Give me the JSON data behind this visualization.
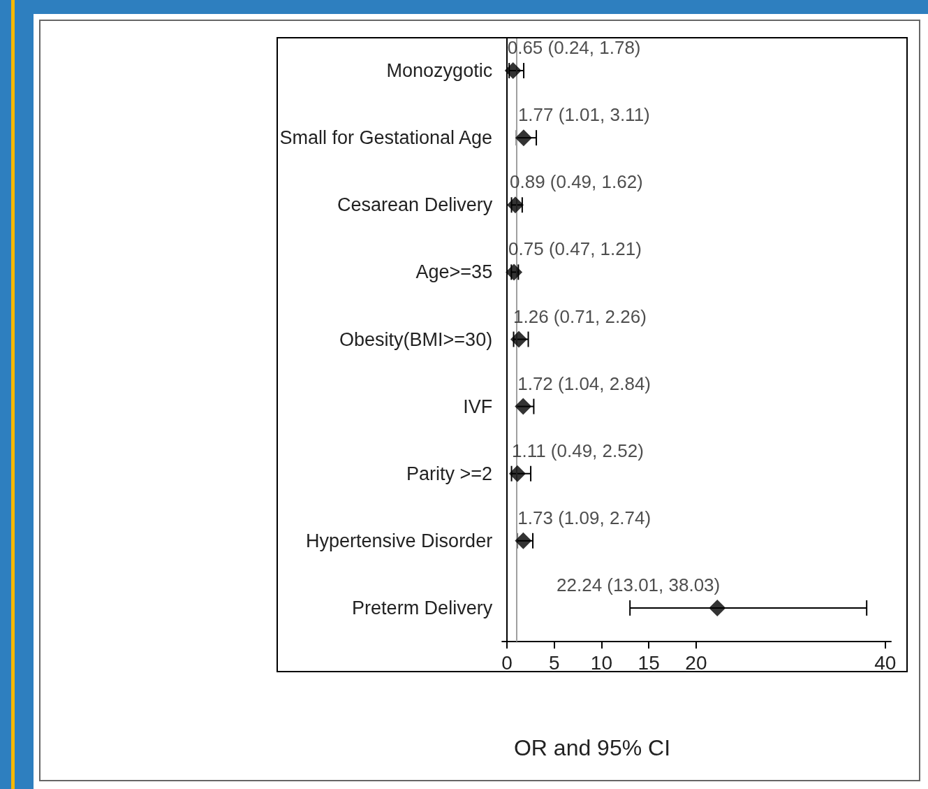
{
  "chart_data": {
    "type": "scatter",
    "orientation": "horizontal",
    "xlabel": "OR and 95% CI",
    "categories": [
      "Monozygotic",
      "Small for Gestational Age",
      "Cesarean Delivery",
      "Age>=35",
      "Obesity(BMI>=30)",
      "IVF",
      "Parity >=2",
      "Hypertensive Disorder",
      "Preterm Delivery"
    ],
    "values": [
      0.65,
      1.77,
      0.89,
      0.75,
      1.26,
      1.72,
      1.11,
      1.73,
      22.24
    ],
    "errors": [
      [
        0.24,
        1.78
      ],
      [
        1.01,
        3.11
      ],
      [
        0.49,
        1.62
      ],
      [
        0.47,
        1.21
      ],
      [
        0.71,
        2.26
      ],
      [
        1.04,
        2.84
      ],
      [
        0.49,
        2.52
      ],
      [
        1.09,
        2.74
      ],
      [
        13.01,
        38.03
      ]
    ],
    "value_labels": [
      "0.65 (0.24, 1.78)",
      "1.77 (1.01, 3.11)",
      "0.89 (0.49, 1.62)",
      "0.75 (0.47, 1.21)",
      "1.26 (0.71, 2.26)",
      "1.72 (1.04, 2.84)",
      "1.11 (0.49, 2.52)",
      "1.73 (1.09, 2.74)",
      "22.24 (13.01, 38.03)"
    ],
    "color": "#000000",
    "marker": "diamond",
    "xlim": [
      -0.5,
      40.6
    ],
    "xticks": [
      0,
      5,
      10,
      15,
      20,
      40
    ],
    "ref_lines": [
      {
        "axis": "x",
        "value": 1,
        "color": "#a0a0a0"
      }
    ],
    "grid": false
  }
}
